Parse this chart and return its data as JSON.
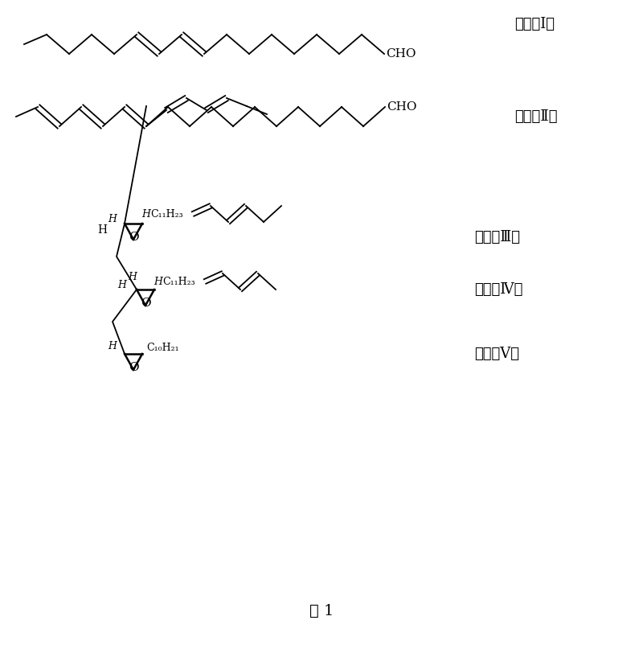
{
  "title": "图 1",
  "background_color": "#ffffff",
  "text_color": "#000000",
  "labels": [
    "（组分Ⅰ）",
    "（组分Ⅱ）",
    "（组分Ⅲ）",
    "（组分Ⅳ）",
    "（组分Ⅴ）"
  ],
  "fig_width": 8.0,
  "fig_height": 8.07
}
